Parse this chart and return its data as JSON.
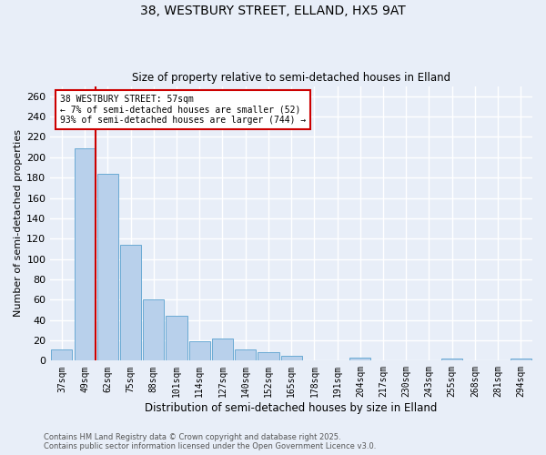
{
  "title1": "38, WESTBURY STREET, ELLAND, HX5 9AT",
  "title2": "Size of property relative to semi-detached houses in Elland",
  "xlabel": "Distribution of semi-detached houses by size in Elland",
  "ylabel": "Number of semi-detached properties",
  "categories": [
    "37sqm",
    "49sqm",
    "62sqm",
    "75sqm",
    "88sqm",
    "101sqm",
    "114sqm",
    "127sqm",
    "140sqm",
    "152sqm",
    "165sqm",
    "178sqm",
    "191sqm",
    "204sqm",
    "217sqm",
    "230sqm",
    "243sqm",
    "255sqm",
    "268sqm",
    "281sqm",
    "294sqm"
  ],
  "values": [
    11,
    209,
    184,
    114,
    60,
    44,
    19,
    22,
    11,
    8,
    5,
    0,
    0,
    3,
    0,
    0,
    0,
    2,
    0,
    0,
    2
  ],
  "bar_color": "#b8d0eb",
  "bar_edge_color": "#6aaad4",
  "red_line_index": 1,
  "annotation_title": "38 WESTBURY STREET: 57sqm",
  "annotation_line1": "← 7% of semi-detached houses are smaller (52)",
  "annotation_line2": "93% of semi-detached houses are larger (744) →",
  "annotation_box_color": "#ffffff",
  "annotation_box_edge": "#cc0000",
  "red_line_color": "#cc0000",
  "background_color": "#e8eef8",
  "grid_color": "#ffffff",
  "footer1": "Contains HM Land Registry data © Crown copyright and database right 2025.",
  "footer2": "Contains public sector information licensed under the Open Government Licence v3.0.",
  "ylim": [
    0,
    270
  ],
  "yticks": [
    0,
    20,
    40,
    60,
    80,
    100,
    120,
    140,
    160,
    180,
    200,
    220,
    240,
    260
  ]
}
